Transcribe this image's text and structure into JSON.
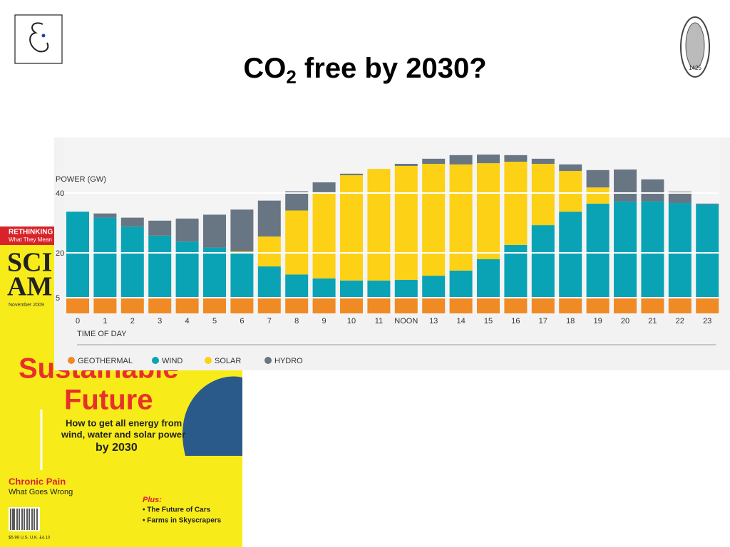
{
  "slide": {
    "title": [
      "CO",
      "2",
      " free by 2030?"
    ],
    "seal": "1425",
    "magazine": {
      "banner": "RETHINKING",
      "banner_sub": "What They Mean",
      "masthead": [
        "SCI",
        "AM"
      ],
      "date": "November 2009",
      "headline": [
        "Sustainable",
        "Future"
      ],
      "deck": [
        "How to get all energy from",
        "wind, water and solar power",
        "by 2030"
      ],
      "story": "Chronic Pain",
      "story_sub": "What Goes Wrong",
      "plus": "Plus:",
      "plus_items": [
        "• The Future of Cars",
        "• Farms in Skyscrapers"
      ],
      "price": "$5.99 U.S.   U.K. £4.10"
    }
  },
  "chart_data": {
    "type": "stacked_bar",
    "y_axis_label": "POWER (GW)",
    "x_axis_label": "TIME OF DAY",
    "categories": [
      "0",
      "1",
      "2",
      "3",
      "4",
      "5",
      "6",
      "7",
      "8",
      "9",
      "10",
      "11",
      "NOON",
      "13",
      "14",
      "15",
      "16",
      "17",
      "18",
      "19",
      "20",
      "21",
      "22",
      "23"
    ],
    "series": [
      {
        "name": "GEOTHERMAL",
        "color": "#f08a24",
        "values": [
          5,
          5,
          5,
          5,
          5,
          5,
          5,
          5,
          5,
          5,
          5,
          5,
          5,
          5,
          5,
          5,
          5,
          5,
          5,
          5,
          5,
          5,
          5,
          5
        ]
      },
      {
        "name": "WIND",
        "color": "#0aa3b5",
        "values": [
          29,
          27,
          24,
          21,
          19,
          17,
          15,
          10.7,
          8,
          6.7,
          6,
          6,
          6.2,
          7.6,
          9.3,
          13.1,
          17.9,
          24.5,
          29,
          31.7,
          32.4,
          32.4,
          31.9,
          31.4
        ]
      },
      {
        "name": "SOLAR",
        "color": "#fcd116",
        "values": [
          0,
          0,
          0,
          0,
          0,
          0,
          0.7,
          10,
          21.4,
          28.8,
          35.2,
          37.3,
          38.1,
          37.4,
          35.5,
          32.1,
          27.8,
          20.5,
          13.6,
          5.4,
          0,
          0,
          0,
          0
        ]
      },
      {
        "name": "HYDRO",
        "color": "#687684",
        "values": [
          0,
          1.4,
          3,
          5,
          7.7,
          11,
          14,
          12,
          6.4,
          3.3,
          0.5,
          0,
          0.7,
          1.7,
          3.1,
          2.9,
          2.2,
          1.7,
          2.2,
          5.8,
          10.7,
          7.4,
          3.8,
          0.3
        ]
      }
    ],
    "ylim": [
      0,
      58
    ],
    "yticks": [
      5,
      20,
      40
    ],
    "grid": true,
    "legend": "bottom"
  }
}
